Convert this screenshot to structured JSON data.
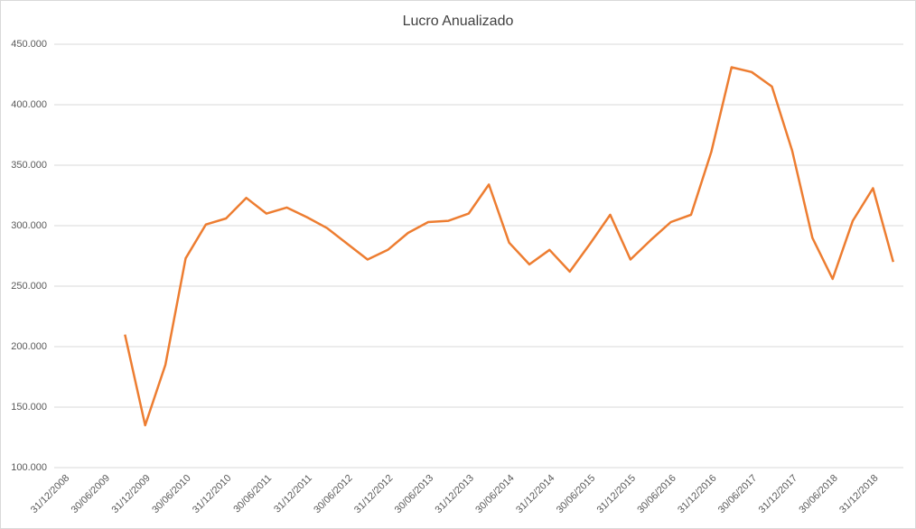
{
  "chart_data": {
    "type": "line",
    "title": "Lucro Anualizado",
    "categories": [
      "31/12/2008",
      null,
      "30/06/2009",
      null,
      "31/12/2009",
      null,
      "30/06/2010",
      null,
      "31/12/2010",
      null,
      "30/06/2011",
      null,
      "31/12/2011",
      null,
      "30/06/2012",
      null,
      "31/12/2012",
      null,
      "30/06/2013",
      null,
      "31/12/2013",
      null,
      "30/06/2014",
      null,
      "31/12/2014",
      null,
      "30/06/2015",
      null,
      "31/12/2015",
      null,
      "30/06/2016",
      null,
      "31/12/2016",
      null,
      "30/06/2017",
      null,
      "31/12/2017",
      null,
      "30/06/2018",
      null,
      "31/12/2018",
      null
    ],
    "values": [
      null,
      null,
      null,
      210000,
      135000,
      185000,
      273000,
      301000,
      306000,
      323000,
      310000,
      315000,
      307000,
      298000,
      285000,
      272000,
      280000,
      294000,
      303000,
      304000,
      310000,
      334000,
      286000,
      268000,
      280000,
      262000,
      285000,
      309000,
      272000,
      288000,
      303000,
      309000,
      361000,
      431000,
      427000,
      415000,
      362000,
      290000,
      256000,
      304000,
      331000,
      270000
    ],
    "color": "#ed7d31",
    "ylim": [
      100000,
      450000
    ],
    "yticks": [
      {
        "value": 100000,
        "label": "100.000"
      },
      {
        "value": 150000,
        "label": "150.000"
      },
      {
        "value": 200000,
        "label": "200.000"
      },
      {
        "value": 250000,
        "label": "250.000"
      },
      {
        "value": 300000,
        "label": "300.000"
      },
      {
        "value": 350000,
        "label": "350.000"
      },
      {
        "value": 400000,
        "label": "400.000"
      },
      {
        "value": 450000,
        "label": "450.000"
      }
    ],
    "grid": true
  }
}
